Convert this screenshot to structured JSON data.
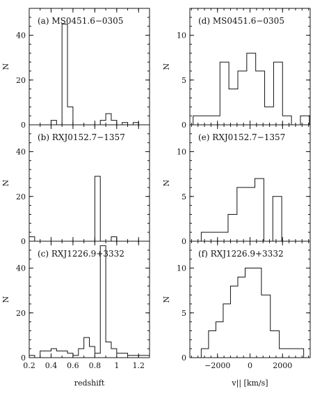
{
  "chart_data": [
    {
      "id": "a",
      "type": "histogram",
      "title": "(a) MS0451.6−0305",
      "xlabel": "",
      "ylabel": "N",
      "xlim": [
        0.2,
        1.3
      ],
      "ylim": [
        0,
        52
      ],
      "yticks": [
        0,
        20,
        40
      ],
      "xticks": [
        0.2,
        0.4,
        0.6,
        0.8,
        1,
        1.2
      ],
      "show_xtick_labels": false,
      "bin_edges": [
        0.2,
        0.25,
        0.3,
        0.35,
        0.4,
        0.45,
        0.5,
        0.55,
        0.6,
        0.65,
        0.7,
        0.75,
        0.8,
        0.85,
        0.9,
        0.95,
        1.0,
        1.05,
        1.1,
        1.15,
        1.2,
        1.25,
        1.3
      ],
      "counts": [
        0,
        0,
        0,
        0,
        2,
        0,
        45,
        8,
        0,
        0,
        0,
        0,
        0,
        2,
        5,
        2,
        0,
        1,
        0,
        1,
        0,
        0
      ]
    },
    {
      "id": "d",
      "type": "histogram",
      "title": "(d) MS0451.6−0305",
      "xlabel": "",
      "ylabel": "N",
      "xlim": [
        -3700,
        3700
      ],
      "ylim": [
        0,
        13
      ],
      "yticks": [
        0,
        5,
        10
      ],
      "xticks": [
        -2000,
        0,
        2000
      ],
      "show_xtick_labels": false,
      "bin_edges": [
        -3500,
        -2950,
        -2400,
        -1850,
        -1300,
        -750,
        -200,
        350,
        900,
        1450,
        2000,
        2550,
        3100,
        3650
      ],
      "counts": [
        1,
        1,
        1,
        7,
        4,
        6,
        8,
        6,
        2,
        7,
        1,
        0,
        1
      ]
    },
    {
      "id": "b",
      "type": "histogram",
      "title": "(b) RXJ0152.7−1357",
      "xlabel": "",
      "ylabel": "N",
      "xlim": [
        0.2,
        1.3
      ],
      "ylim": [
        0,
        52
      ],
      "yticks": [
        0,
        20,
        40
      ],
      "xticks": [
        0.2,
        0.4,
        0.6,
        0.8,
        1,
        1.2
      ],
      "show_xtick_labels": false,
      "bin_edges": [
        0.2,
        0.25,
        0.3,
        0.35,
        0.4,
        0.45,
        0.5,
        0.55,
        0.6,
        0.65,
        0.7,
        0.75,
        0.8,
        0.85,
        0.9,
        0.95,
        1.0,
        1.05,
        1.1,
        1.15,
        1.2,
        1.25,
        1.3
      ],
      "counts": [
        2,
        0,
        0,
        0,
        0,
        0,
        0,
        0,
        0,
        0,
        0,
        0,
        29,
        0,
        0,
        2,
        0,
        0,
        0,
        0,
        0,
        0
      ]
    },
    {
      "id": "e",
      "type": "histogram",
      "title": "(e) RXJ0152.7−1357",
      "xlabel": "",
      "ylabel": "N",
      "xlim": [
        -3700,
        3700
      ],
      "ylim": [
        0,
        13
      ],
      "yticks": [
        0,
        5,
        10
      ],
      "xticks": [
        -2000,
        0,
        2000
      ],
      "show_xtick_labels": false,
      "bin_edges": [
        -3000,
        -2450,
        -1900,
        -1350,
        -800,
        -250,
        300,
        850,
        1400,
        1950
      ],
      "counts": [
        1,
        1,
        1,
        3,
        6,
        6,
        7,
        0,
        5
      ]
    },
    {
      "id": "c",
      "type": "histogram",
      "title": "(c) RXJ1226.9+3332",
      "xlabel": "redshift",
      "ylabel": "N",
      "xlim": [
        0.2,
        1.3
      ],
      "ylim": [
        0,
        52
      ],
      "yticks": [
        0,
        20,
        40
      ],
      "xticks": [
        0.2,
        0.4,
        0.6,
        0.8,
        1,
        1.2
      ],
      "xtick_labels": [
        "0.2",
        "0.4",
        "0.6",
        "0.8",
        "1",
        "1.2"
      ],
      "show_xtick_labels": true,
      "bin_edges": [
        0.2,
        0.25,
        0.3,
        0.35,
        0.4,
        0.45,
        0.5,
        0.55,
        0.6,
        0.65,
        0.7,
        0.75,
        0.8,
        0.85,
        0.9,
        0.95,
        1.0,
        1.05,
        1.1,
        1.15,
        1.2,
        1.25,
        1.3
      ],
      "counts": [
        1,
        0,
        3,
        3,
        4,
        3,
        3,
        2,
        1,
        4,
        9,
        5,
        2,
        50,
        7,
        4,
        2,
        2,
        1,
        1,
        1,
        1
      ]
    },
    {
      "id": "f",
      "type": "histogram",
      "title": "(f) RXJ1226.9+3332",
      "xlabel": "v|| [km/s]",
      "ylabel": "N",
      "xlim": [
        -3700,
        3700
      ],
      "ylim": [
        0,
        13
      ],
      "yticks": [
        0,
        5,
        10
      ],
      "xticks": [
        -2000,
        0,
        2000
      ],
      "xtick_labels": [
        "−2000",
        "0",
        "2000"
      ],
      "show_xtick_labels": true,
      "bin_edges": [
        -3000,
        -2550,
        -2100,
        -1650,
        -1200,
        -750,
        -300,
        150,
        700,
        1250,
        1800,
        2550,
        3300
      ],
      "counts": [
        1,
        3,
        4,
        6,
        8,
        9,
        10,
        10,
        7,
        3,
        1,
        1
      ]
    }
  ]
}
